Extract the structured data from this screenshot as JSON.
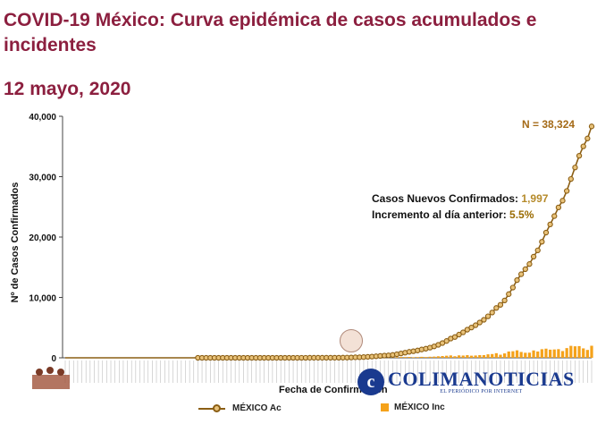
{
  "header": {
    "title_line1": "COVID-19 México: Curva epidémica de casos acumulados e",
    "title_line2": "incidentes",
    "date": "12 mayo, 2020"
  },
  "annotations": {
    "total_label": "N = 38,324",
    "new_cases_label": "Casos Nuevos Confirmados:",
    "new_cases_value": "1,997",
    "increase_label": "Incremento al día anterior:",
    "increase_value": "5.5%"
  },
  "legend": {
    "accumulated": "MÉXICO Ac",
    "incident": "MÉXICO Inc"
  },
  "watermark": {
    "name": "COLIMANOTICIAS",
    "tagline": "EL PERIÓDICO POR INTERNET"
  },
  "colors": {
    "title": "#8c1f3f",
    "accumulated_line": "#8b5e14",
    "accumulated_marker": "#e8c27a",
    "incident_bar": "#f5a21a",
    "watermark": "#1a3a8f"
  },
  "chart_data": {
    "type": "line",
    "title": "COVID-19 México: Curva epidémica de casos acumulados e incidentes",
    "xlabel": "Fecha de Confirmación",
    "ylabel": "Nº de Casos Confirmados",
    "ylim": [
      0,
      40000
    ],
    "yticks": [
      "0",
      "10,000",
      "20,000",
      "30,000",
      "40,000"
    ],
    "grid": false,
    "legend_position": "bottom",
    "series": [
      {
        "name": "MÉXICO Ac",
        "kind": "line-markers",
        "values": [
          0,
          0,
          0,
          0,
          0,
          0,
          0,
          0,
          0,
          0,
          0,
          0,
          0,
          0,
          0,
          0,
          0,
          0,
          0,
          0,
          0,
          0,
          0,
          0,
          0,
          0,
          0,
          0,
          0,
          0,
          0,
          0,
          0,
          0,
          0,
          0,
          0,
          0,
          0,
          0,
          0,
          0,
          0,
          0,
          0,
          0,
          0,
          0,
          0,
          0,
          0,
          0,
          0,
          0,
          1,
          1,
          2,
          4,
          5,
          6,
          7,
          7,
          8,
          11,
          12,
          15,
          20,
          26,
          41,
          53,
          82,
          93,
          118,
          164,
          203,
          251,
          316,
          367,
          405,
          475,
          585,
          717,
          848,
          993,
          1094,
          1215,
          1378,
          1510,
          1688,
          1890,
          2143,
          2439,
          2785,
          3181,
          3441,
          3844,
          4219,
          4661,
          5014,
          5399,
          5847,
          6297,
          6875,
          7497,
          8261,
          8772,
          9501,
          10544,
          11633,
          12872,
          13842,
          14677,
          15529,
          16752,
          17799,
          19224,
          20739,
          22088,
          23471,
          24905,
          26025,
          27634,
          29616,
          31522,
          33460,
          35022,
          36327,
          38324
        ]
      },
      {
        "name": "MÉXICO Inc",
        "kind": "bar",
        "values": [
          0,
          0,
          0,
          0,
          0,
          0,
          0,
          0,
          0,
          0,
          0,
          0,
          0,
          0,
          0,
          0,
          0,
          0,
          0,
          0,
          0,
          0,
          0,
          0,
          0,
          0,
          0,
          0,
          0,
          0,
          0,
          0,
          0,
          0,
          0,
          0,
          0,
          0,
          0,
          0,
          0,
          0,
          0,
          0,
          0,
          0,
          0,
          0,
          0,
          0,
          0,
          0,
          0,
          0,
          1,
          0,
          1,
          2,
          1,
          1,
          1,
          0,
          1,
          3,
          1,
          3,
          5,
          6,
          15,
          12,
          29,
          11,
          25,
          46,
          39,
          48,
          65,
          51,
          38,
          70,
          110,
          132,
          131,
          145,
          101,
          121,
          163,
          132,
          178,
          202,
          253,
          296,
          346,
          396,
          260,
          403,
          375,
          442,
          353,
          385,
          448,
          450,
          578,
          622,
          764,
          511,
          729,
          1043,
          1089,
          1239,
          970,
          835,
          852,
          1223,
          1047,
          1425,
          1515,
          1349,
          1383,
          1434,
          1120,
          1609,
          1982,
          1906,
          1938,
          1562,
          1305,
          1997
        ]
      }
    ]
  }
}
